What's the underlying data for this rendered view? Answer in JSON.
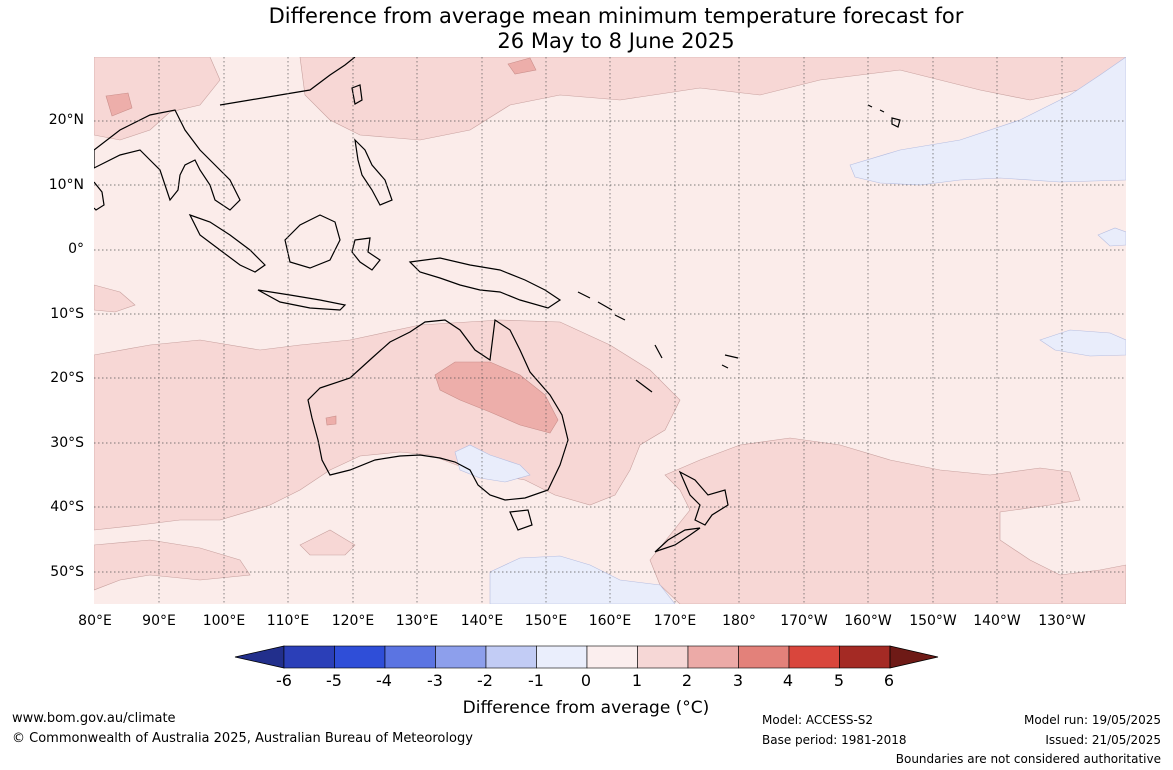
{
  "title": {
    "line1": "Difference from average mean minimum temperature forecast for",
    "line2": "26 May to 8 June 2025"
  },
  "map": {
    "lat_labels": [
      "20°N",
      "10°N",
      "0°",
      "10°S",
      "20°S",
      "30°S",
      "40°S",
      "50°S"
    ],
    "lon_labels": [
      "80°E",
      "90°E",
      "100°E",
      "110°E",
      "120°E",
      "130°E",
      "140°E",
      "150°E",
      "160°E",
      "170°E",
      "180°",
      "170°W",
      "160°W",
      "150°W",
      "140°W",
      "130°W"
    ],
    "gridlines": "dotted"
  },
  "colorbar": {
    "ticks": [
      "-6",
      "-5",
      "-4",
      "-3",
      "-2",
      "-1",
      "0",
      "1",
      "2",
      "3",
      "4",
      "5",
      "6"
    ],
    "colors": [
      "#222f8c",
      "#2b3fb8",
      "#2f4ed8",
      "#5b74e2",
      "#8d9fec",
      "#c2ccf5",
      "#eaeefc",
      "#fbeeee",
      "#f6d7d6",
      "#ecaaa7",
      "#e3817a",
      "#d9463c",
      "#a42a24",
      "#6e1a16"
    ],
    "label": "Difference from average (°C)"
  },
  "footer": {
    "website": "www.bom.gov.au/climate",
    "copyright": "© Commonwealth of Australia 2025, Australian Bureau of Meteorology",
    "model": "Model: ACCESS-S2",
    "base_period": "Base period: 1981-2018",
    "model_run": "Model run: 19/05/2025",
    "issued": "Issued: 21/05/2025",
    "disclaimer": "Boundaries are not considered authoritative"
  }
}
